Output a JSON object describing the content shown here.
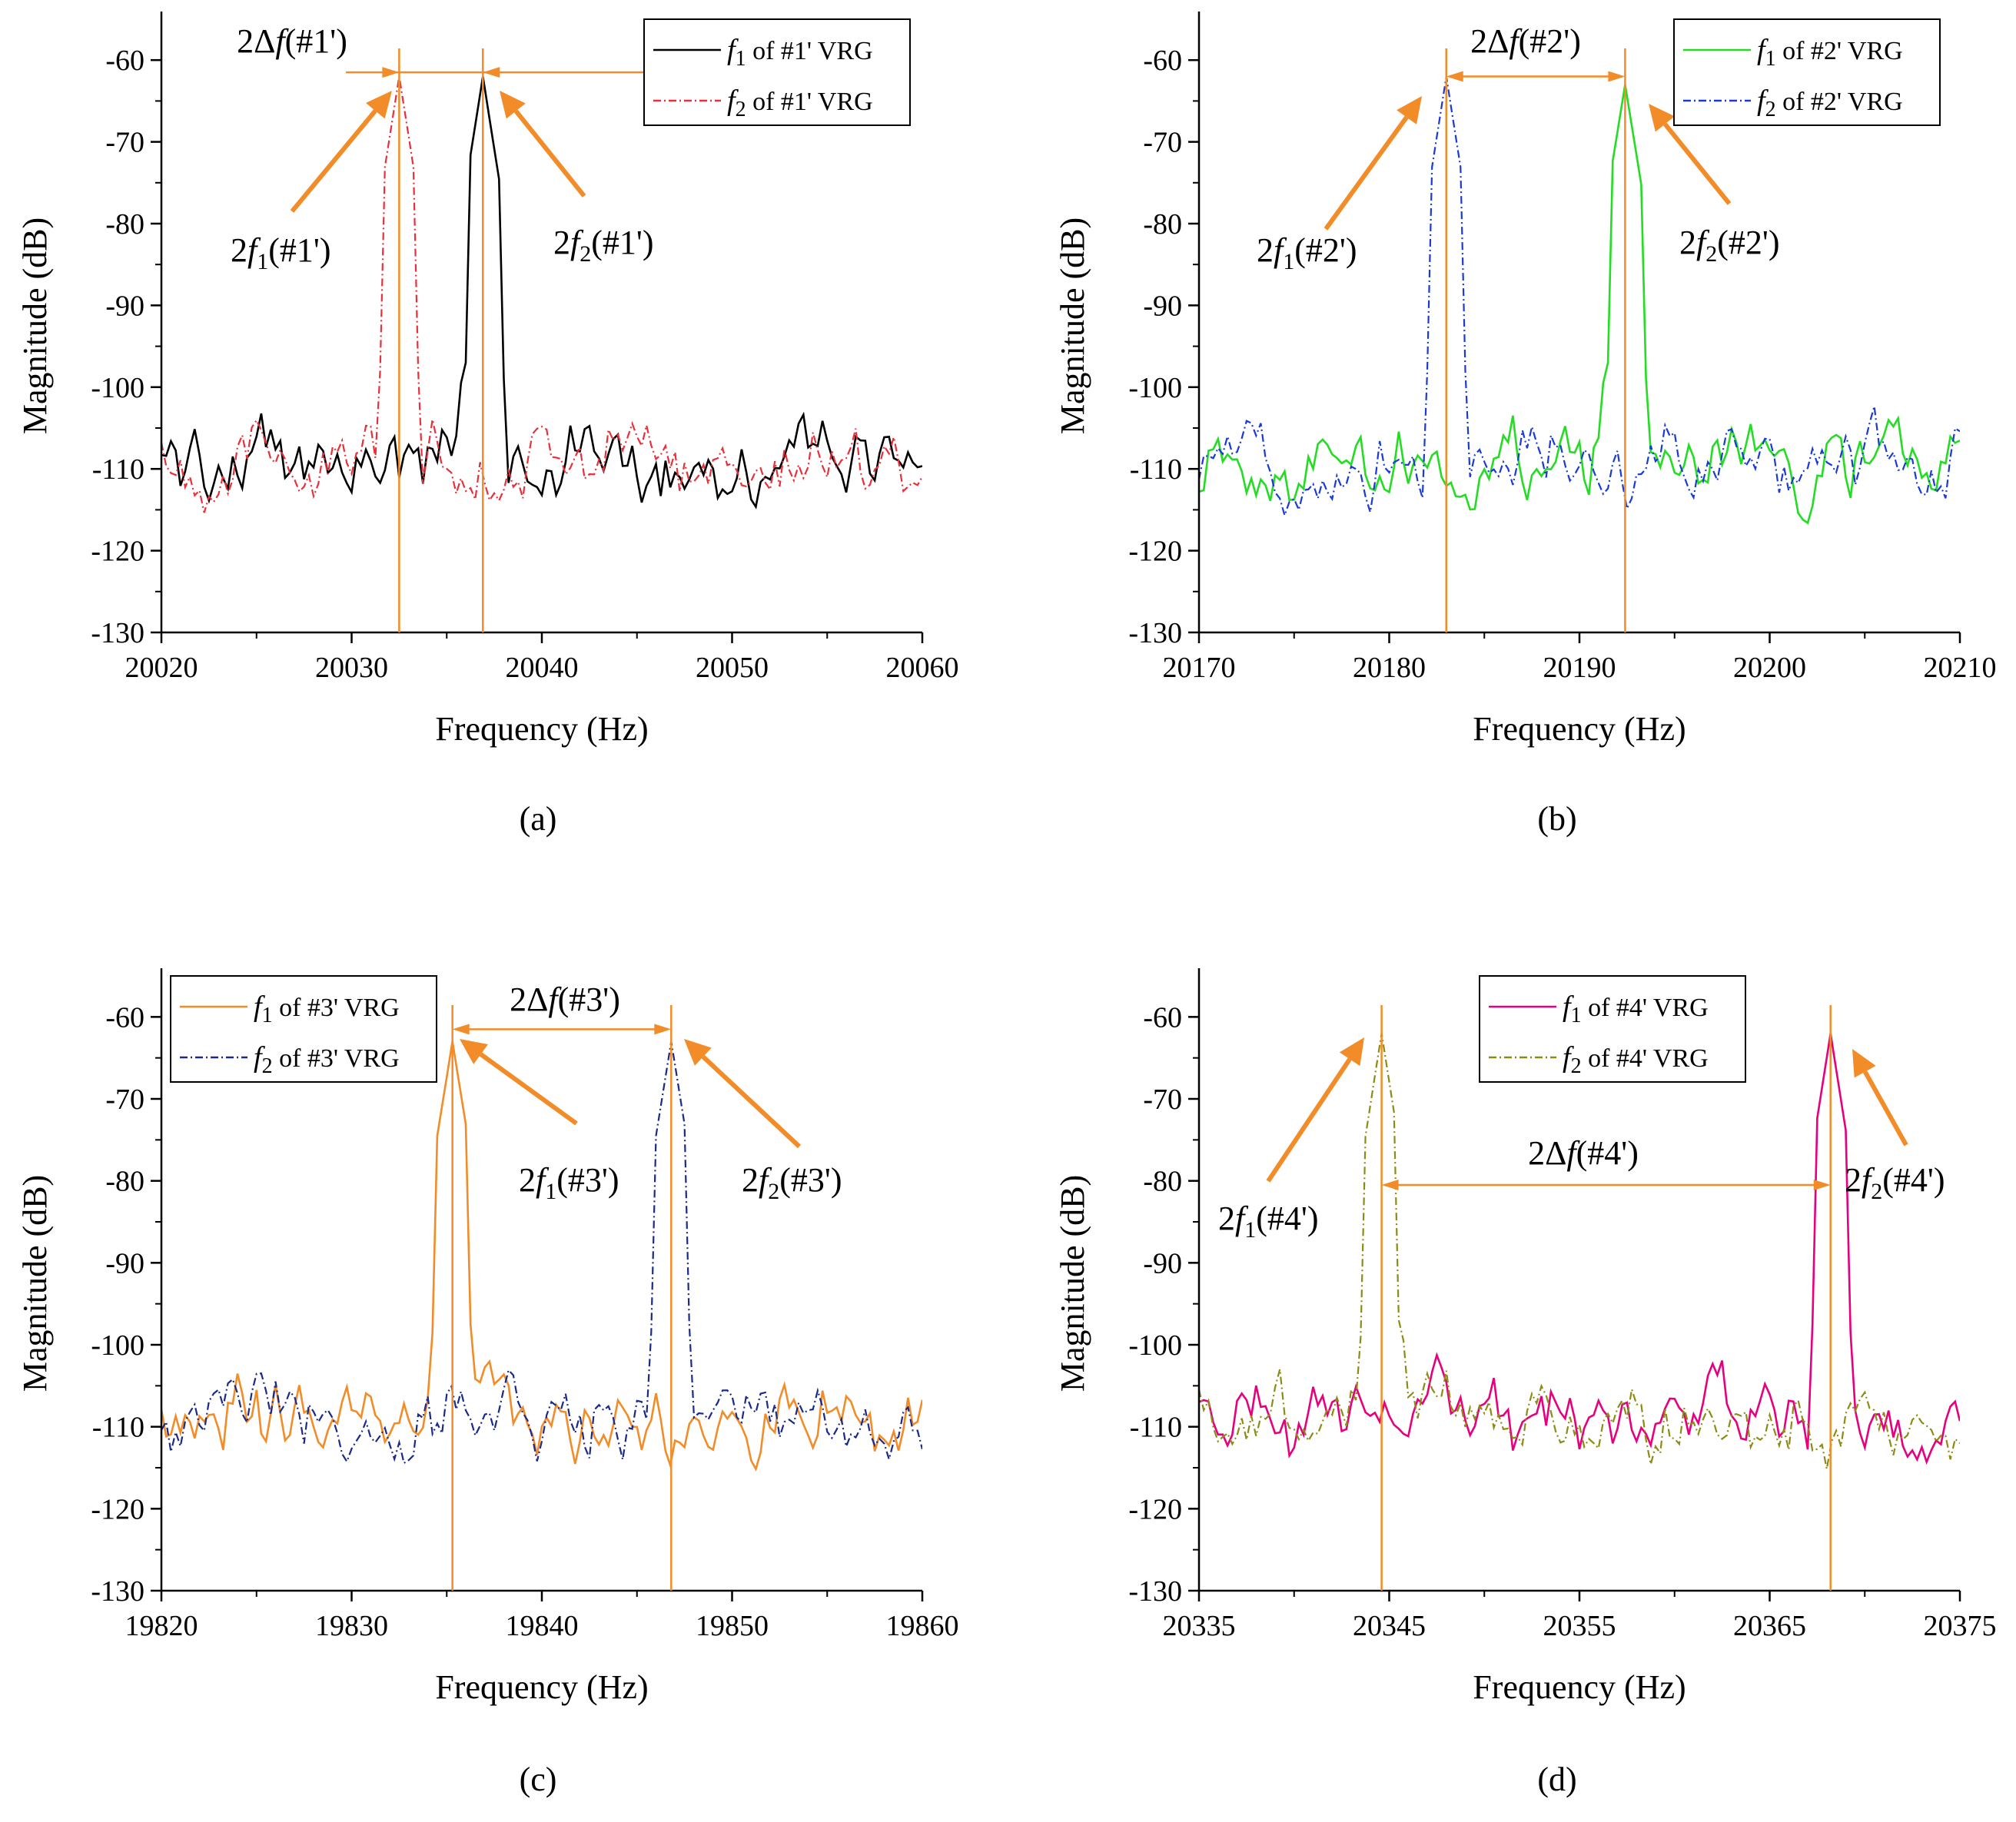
{
  "figure": {
    "panel_labels": [
      "(a)",
      "(b)",
      "(c)",
      "(d)"
    ]
  },
  "colors": {
    "annotation": "#f28c28",
    "black": "#000000",
    "red": "#e8303a",
    "green": "#22dd22",
    "blue": "#1a3ad8",
    "orange": "#f28c28",
    "navy": "#1a2a8a",
    "magenta": "#e6007e",
    "olive": "#8c8c14"
  },
  "chart_data": [
    {
      "type": "line",
      "panel": "(a)",
      "xlabel": "Frequency (Hz)",
      "ylabel": "Magnitude (dB)",
      "xlim": [
        20020,
        20060
      ],
      "ylim": [
        -130,
        -55
      ],
      "xticks": [
        20020,
        20030,
        20040,
        20050,
        20060
      ],
      "yticks": [
        -130,
        -120,
        -110,
        -100,
        -90,
        -80,
        -70,
        -60
      ],
      "legend_position": "top-right",
      "series": [
        {
          "name": "f1 of #1' VRG",
          "sub": "1",
          "rest": " of #1' VRG",
          "color": "#000000",
          "dash": "solid",
          "peak": 20036.9,
          "peak_db": -62
        },
        {
          "name": "f2 of #1' VRG",
          "sub": "2",
          "rest": " of #1' VRG",
          "color": "#e8303a",
          "dash": "dashdot",
          "peak": 20032.5,
          "peak_db": -62
        }
      ],
      "annotations": {
        "delta_label": "2Δf(#1')",
        "delta_pre": "2Δ",
        "delta_post": "(#1')",
        "marker_a": {
          "x": 20032.5,
          "label_pre": "2",
          "label_sub": "1",
          "label_post": "(#1')"
        },
        "marker_b": {
          "x": 20036.9,
          "label_pre": "2",
          "label_sub": "2",
          "label_post": "(#1')"
        }
      }
    },
    {
      "type": "line",
      "panel": "(b)",
      "xlabel": "Frequency (Hz)",
      "ylabel": "Magnitude (dB)",
      "xlim": [
        20170,
        20210
      ],
      "ylim": [
        -130,
        -55
      ],
      "xticks": [
        20170,
        20180,
        20190,
        20200,
        20210
      ],
      "yticks": [
        -130,
        -120,
        -110,
        -100,
        -90,
        -80,
        -70,
        -60
      ],
      "legend_position": "top-right",
      "series": [
        {
          "name": "f1 of #2' VRG",
          "sub": "1",
          "rest": " of #2' VRG",
          "color": "#22dd22",
          "dash": "solid",
          "peak": 20192.4,
          "peak_db": -63
        },
        {
          "name": "f2 of #2' VRG",
          "sub": "2",
          "rest": " of #2' VRG",
          "color": "#1a3ad8",
          "dash": "dashdot",
          "peak": 20183.0,
          "peak_db": -62
        }
      ],
      "annotations": {
        "delta_label": "2Δf(#2')",
        "delta_pre": "2Δ",
        "delta_post": "(#2')",
        "marker_a": {
          "x": 20183.0,
          "label_pre": "2",
          "label_sub": "1",
          "label_post": "(#2')"
        },
        "marker_b": {
          "x": 20192.4,
          "label_pre": "2",
          "label_sub": "2",
          "label_post": "(#2')"
        }
      }
    },
    {
      "type": "line",
      "panel": "(c)",
      "xlabel": "Frequency (Hz)",
      "ylabel": "Magnitude (dB)",
      "xlim": [
        19820,
        19860
      ],
      "ylim": [
        -130,
        -55
      ],
      "xticks": [
        19820,
        19830,
        19840,
        19850,
        19860
      ],
      "yticks": [
        -130,
        -120,
        -110,
        -100,
        -90,
        -80,
        -70,
        -60
      ],
      "legend_position": "top-left",
      "series": [
        {
          "name": "f1 of #3' VRG",
          "sub": "1",
          "rest": " of #3' VRG",
          "color": "#f28c28",
          "dash": "solid",
          "peak": 19835.3,
          "peak_db": -63
        },
        {
          "name": "f2 of #3' VRG",
          "sub": "2",
          "rest": " of #3' VRG",
          "color": "#1a2a8a",
          "dash": "dashdot",
          "peak": 19846.8,
          "peak_db": -63
        }
      ],
      "annotations": {
        "delta_label": "2Δf(#3')",
        "delta_pre": "2Δ",
        "delta_post": "(#3')",
        "marker_a": {
          "x": 19835.3,
          "label_pre": "2",
          "label_sub": "1",
          "label_post": "(#3')"
        },
        "marker_b": {
          "x": 19846.8,
          "label_pre": "2",
          "label_sub": "2",
          "label_post": "(#3')"
        }
      }
    },
    {
      "type": "line",
      "panel": "(d)",
      "xlabel": "Frequency (Hz)",
      "ylabel": "Magnitude (dB)",
      "xlim": [
        20335,
        20375
      ],
      "ylim": [
        -130,
        -55
      ],
      "xticks": [
        20335,
        20345,
        20355,
        20365,
        20375
      ],
      "yticks": [
        -130,
        -120,
        -110,
        -100,
        -90,
        -80,
        -70,
        -60
      ],
      "legend_position": "top-center",
      "series": [
        {
          "name": "f1 of #4' VRG",
          "sub": "1",
          "rest": " of #4' VRG",
          "color": "#e6007e",
          "dash": "solid",
          "peak": 20368.2,
          "peak_db": -62
        },
        {
          "name": "f2 of #4' VRG",
          "sub": "2",
          "rest": " of #4' VRG",
          "color": "#8c8c14",
          "dash": "dashdot",
          "peak": 20344.6,
          "peak_db": -62
        }
      ],
      "annotations": {
        "delta_label": "2Δf(#4')",
        "delta_pre": "2Δ",
        "delta_post": "(#4')",
        "marker_a": {
          "x": 20344.6,
          "label_pre": "2",
          "label_sub": "1",
          "label_post": "(#4')"
        },
        "marker_b": {
          "x": 20368.2,
          "label_pre": "2",
          "label_sub": "2",
          "label_post": "(#4')"
        }
      }
    }
  ]
}
